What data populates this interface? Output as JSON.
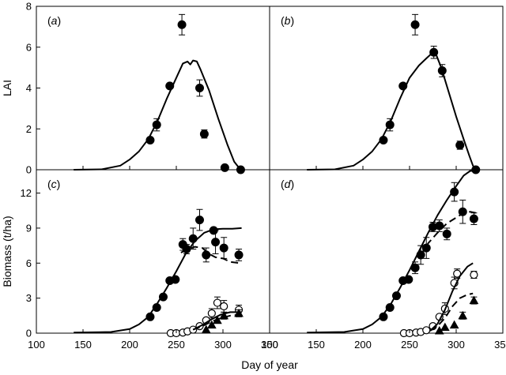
{
  "chart_data": {
    "type": "scatter",
    "x_label": "Day of year",
    "x_ticks": [
      100,
      150,
      200,
      250,
      300,
      350
    ],
    "xlim": [
      100,
      350
    ],
    "panels": [
      {
        "id": "a",
        "label_letter": "a",
        "ylabel": "LAI",
        "ylim": [
          0,
          8
        ],
        "y_ticks": [
          0,
          2,
          4,
          6,
          8
        ],
        "series": [
          {
            "kind": "filled-circle",
            "points": [
              [
                222,
                1.45
              ],
              [
                229,
                2.2
              ],
              [
                243,
                4.1
              ],
              [
                256,
                7.1
              ],
              [
                275,
                4.0
              ],
              [
                280,
                1.75
              ],
              [
                302,
                0.1
              ],
              [
                319,
                0.0
              ]
            ],
            "err": [
              0,
              0.3,
              0,
              0.5,
              0.4,
              0.2,
              0,
              0
            ]
          },
          {
            "kind": "solid-line",
            "points": [
              [
                140,
                0
              ],
              [
                170,
                0.02
              ],
              [
                190,
                0.2
              ],
              [
                200,
                0.5
              ],
              [
                210,
                0.9
              ],
              [
                220,
                1.5
              ],
              [
                230,
                2.4
              ],
              [
                240,
                3.5
              ],
              [
                250,
                4.5
              ],
              [
                257,
                5.2
              ],
              [
                262,
                5.3
              ],
              [
                265,
                5.15
              ],
              [
                268,
                5.35
              ],
              [
                272,
                5.3
              ],
              [
                276,
                4.9
              ],
              [
                285,
                3.9
              ],
              [
                295,
                2.5
              ],
              [
                305,
                1.2
              ],
              [
                312,
                0.4
              ],
              [
                318,
                0.05
              ],
              [
                320,
                0
              ]
            ]
          }
        ]
      },
      {
        "id": "b",
        "label_letter": "b",
        "ylim": [
          0,
          8
        ],
        "series": [
          {
            "kind": "filled-circle",
            "points": [
              [
                222,
                1.45
              ],
              [
                229,
                2.2
              ],
              [
                243,
                4.1
              ],
              [
                256,
                7.1
              ],
              [
                276,
                5.75
              ],
              [
                285,
                4.85
              ],
              [
                304,
                1.2
              ],
              [
                321,
                0.0
              ]
            ],
            "err": [
              0,
              0.3,
              0,
              0.5,
              0.3,
              0.3,
              0.2,
              0
            ]
          },
          {
            "kind": "solid-line",
            "points": [
              [
                140,
                0
              ],
              [
                170,
                0.02
              ],
              [
                190,
                0.2
              ],
              [
                200,
                0.5
              ],
              [
                210,
                0.9
              ],
              [
                220,
                1.5
              ],
              [
                230,
                2.4
              ],
              [
                240,
                3.5
              ],
              [
                250,
                4.5
              ],
              [
                260,
                5.1
              ],
              [
                268,
                5.45
              ],
              [
                274,
                5.7
              ],
              [
                278,
                5.7
              ],
              [
                284,
                5.0
              ],
              [
                290,
                4.1
              ],
              [
                300,
                2.6
              ],
              [
                308,
                1.5
              ],
              [
                314,
                0.7
              ],
              [
                318,
                0.2
              ],
              [
                321,
                0
              ]
            ]
          }
        ]
      },
      {
        "id": "c",
        "label_letter": "c",
        "ylabel": "Biomass (t/ha)",
        "ylim": [
          0,
          14
        ],
        "y_ticks": [
          0,
          3,
          6,
          9,
          12
        ],
        "series": [
          {
            "kind": "filled-circle",
            "points": [
              [
                222,
                1.4
              ],
              [
                229,
                2.2
              ],
              [
                236,
                3.1
              ],
              [
                243,
                4.5
              ],
              [
                249,
                4.6
              ],
              [
                257,
                7.6
              ],
              [
                261,
                7.2
              ],
              [
                268,
                8.1
              ],
              [
                275,
                9.7
              ],
              [
                282,
                6.7
              ],
              [
                290,
                8.8
              ],
              [
                292,
                7.8
              ],
              [
                301,
                7.3
              ],
              [
                317,
                6.7
              ]
            ],
            "err": [
              0,
              0,
              0,
              0,
              0,
              0.5,
              0.4,
              0.9,
              0.9,
              0.6,
              0,
              1.0,
              0.9,
              0.5
            ]
          },
          {
            "kind": "open-circle",
            "points": [
              [
                244,
                0.0
              ],
              [
                250,
                0.0
              ],
              [
                257,
                0.05
              ],
              [
                262,
                0.15
              ],
              [
                268,
                0.3
              ],
              [
                275,
                0.6
              ],
              [
                282,
                1.1
              ],
              [
                288,
                1.7
              ],
              [
                294,
                2.6
              ],
              [
                301,
                2.3
              ],
              [
                317,
                2.0
              ]
            ],
            "err": [
              0,
              0,
              0,
              0,
              0,
              0,
              0,
              0.4,
              0.5,
              0.5,
              0.4
            ]
          },
          {
            "kind": "filled-triangle",
            "points": [
              [
                282,
                0.3
              ],
              [
                288,
                0.7
              ],
              [
                294,
                1.1
              ],
              [
                301,
                1.5
              ],
              [
                317,
                1.7
              ]
            ],
            "err": [
              0,
              0,
              0,
              0.3,
              0.3
            ]
          },
          {
            "kind": "solid-line",
            "points": [
              [
                140,
                0.05
              ],
              [
                180,
                0.1
              ],
              [
                200,
                0.35
              ],
              [
                210,
                0.75
              ],
              [
                220,
                1.4
              ],
              [
                230,
                2.6
              ],
              [
                240,
                3.9
              ],
              [
                250,
                5.3
              ],
              [
                260,
                6.8
              ],
              [
                270,
                7.9
              ],
              [
                280,
                8.6
              ],
              [
                290,
                8.9
              ],
              [
                300,
                8.95
              ],
              [
                310,
                8.95
              ],
              [
                320,
                9.0
              ]
            ]
          },
          {
            "kind": "dashed-line",
            "points": [
              [
                255,
                6.9
              ],
              [
                262,
                7.2
              ],
              [
                270,
                7.4
              ],
              [
                278,
                7.3
              ],
              [
                285,
                6.8
              ],
              [
                292,
                6.5
              ],
              [
                300,
                6.4
              ],
              [
                308,
                6.1
              ],
              [
                318,
                6.0
              ]
            ]
          },
          {
            "kind": "solid-line",
            "points": [
              [
                268,
                0.3
              ],
              [
                278,
                0.7
              ],
              [
                288,
                1.2
              ],
              [
                298,
                1.6
              ],
              [
                308,
                1.8
              ],
              [
                320,
                1.8
              ]
            ]
          },
          {
            "kind": "dashed-line",
            "points": [
              [
                268,
                0.3
              ],
              [
                278,
                0.6
              ],
              [
                288,
                1.0
              ],
              [
                298,
                1.3
              ],
              [
                308,
                1.5
              ],
              [
                320,
                1.6
              ]
            ]
          }
        ]
      },
      {
        "id": "d",
        "label_letter": "d",
        "ylim": [
          0,
          14
        ],
        "series": [
          {
            "kind": "filled-circle",
            "points": [
              [
                222,
                1.4
              ],
              [
                229,
                2.2
              ],
              [
                236,
                3.2
              ],
              [
                243,
                4.5
              ],
              [
                249,
                4.6
              ],
              [
                256,
                5.6
              ],
              [
                262,
                6.7
              ],
              [
                268,
                7.3
              ],
              [
                275,
                9.1
              ],
              [
                282,
                9.2
              ],
              [
                290,
                8.5
              ],
              [
                298,
                12.1
              ],
              [
                307,
                10.4
              ],
              [
                319,
                9.8
              ]
            ],
            "err": [
              0,
              0,
              0,
              0,
              0,
              0.5,
              0.8,
              0.9,
              0.4,
              0.5,
              0.5,
              0.8,
              1.0,
              0.5
            ]
          },
          {
            "kind": "open-circle",
            "points": [
              [
                244,
                0.0
              ],
              [
                250,
                0.0
              ],
              [
                257,
                0.05
              ],
              [
                262,
                0.1
              ],
              [
                268,
                0.25
              ],
              [
                275,
                0.6
              ],
              [
                282,
                1.4
              ],
              [
                288,
                2.1
              ],
              [
                298,
                4.3
              ],
              [
                301,
                5.1
              ],
              [
                319,
                5.0
              ]
            ],
            "err": [
              0,
              0,
              0,
              0,
              0,
              0,
              0,
              0.5,
              0.5,
              0.4,
              0.3
            ]
          },
          {
            "kind": "filled-triangle",
            "points": [
              [
                282,
                0.2
              ],
              [
                288,
                0.5
              ],
              [
                298,
                0.7
              ],
              [
                307,
                1.5
              ],
              [
                319,
                2.8
              ]
            ],
            "err": [
              0,
              0,
              0,
              0.3,
              0.3
            ]
          },
          {
            "kind": "solid-line",
            "points": [
              [
                140,
                0.05
              ],
              [
                180,
                0.1
              ],
              [
                200,
                0.35
              ],
              [
                210,
                0.75
              ],
              [
                220,
                1.4
              ],
              [
                230,
                2.5
              ],
              [
                240,
                3.9
              ],
              [
                250,
                5.4
              ],
              [
                260,
                7.0
              ],
              [
                270,
                8.6
              ],
              [
                280,
                10.1
              ],
              [
                290,
                11.4
              ],
              [
                300,
                12.6
              ],
              [
                308,
                13.5
              ],
              [
                315,
                13.9
              ],
              [
                321,
                13.9
              ]
            ]
          },
          {
            "kind": "dashed-line",
            "points": [
              [
                262,
                6.7
              ],
              [
                270,
                7.7
              ],
              [
                280,
                8.6
              ],
              [
                290,
                9.4
              ],
              [
                300,
                9.9
              ],
              [
                308,
                10.3
              ],
              [
                315,
                10.4
              ],
              [
                321,
                10.3
              ]
            ]
          },
          {
            "kind": "solid-line",
            "points": [
              [
                272,
                0.2
              ],
              [
                280,
                0.8
              ],
              [
                288,
                2.0
              ],
              [
                296,
                3.6
              ],
              [
                304,
                4.9
              ],
              [
                312,
                5.7
              ],
              [
                318,
                6.0
              ]
            ]
          },
          {
            "kind": "dashed-line",
            "points": [
              [
                272,
                0.2
              ],
              [
                280,
                0.6
              ],
              [
                288,
                1.3
              ],
              [
                296,
                2.3
              ],
              [
                304,
                3.0
              ],
              [
                312,
                3.3
              ],
              [
                318,
                3.4
              ]
            ]
          }
        ]
      }
    ]
  }
}
